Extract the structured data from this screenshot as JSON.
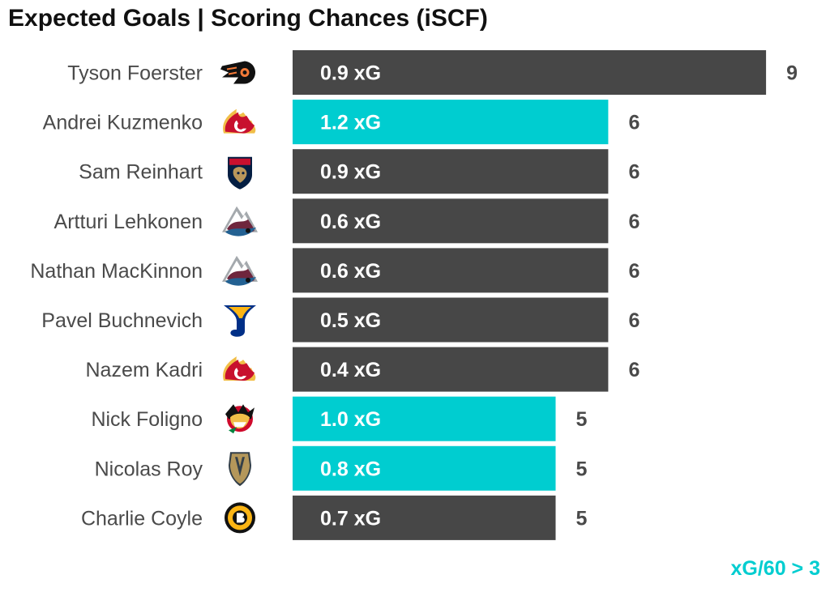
{
  "title": "Expected Goals | Scoring Chances (iSCF)",
  "footnote": "xG/60 > 3",
  "colors": {
    "default_bar": "#474747",
    "highlight_bar": "#00cdd0",
    "player_label": "#4a4a4a",
    "count_label": "#4a4a4a",
    "bar_text": "#ffffff"
  },
  "chart_data": {
    "type": "bar",
    "orientation": "horizontal",
    "title": "Expected Goals | Scoring Chances (iSCF)",
    "xlabel": "",
    "ylabel": "",
    "xlim": [
      0,
      9
    ],
    "grid": false,
    "highlight_rule": "xG/60 > 3",
    "categories": [
      "Tyson Foerster",
      "Andrei Kuzmenko",
      "Sam Reinhart",
      "Artturi Lehkonen",
      "Nathan MacKinnon",
      "Pavel Buchnevich",
      "Nazem Kadri",
      "Nick Foligno",
      "Nicolas Roy",
      "Charlie Coyle"
    ],
    "values": [
      9,
      6,
      6,
      6,
      6,
      6,
      6,
      5,
      5,
      5
    ],
    "xg_labels": [
      "0.9 xG",
      "1.2 xG",
      "0.9 xG",
      "0.6 xG",
      "0.6 xG",
      "0.5 xG",
      "0.4 xG",
      "1.0 xG",
      "0.8 xG",
      "0.7 xG"
    ],
    "highlighted": [
      false,
      true,
      false,
      false,
      false,
      false,
      false,
      true,
      true,
      false
    ],
    "team_logos": [
      "flyers-logo-icon",
      "flames-logo-icon",
      "panthers-logo-icon",
      "avalanche-logo-icon",
      "avalanche-logo-icon",
      "blues-logo-icon",
      "flames-logo-icon",
      "blackhawks-logo-icon",
      "golden-knights-logo-icon",
      "bruins-logo-icon"
    ]
  }
}
